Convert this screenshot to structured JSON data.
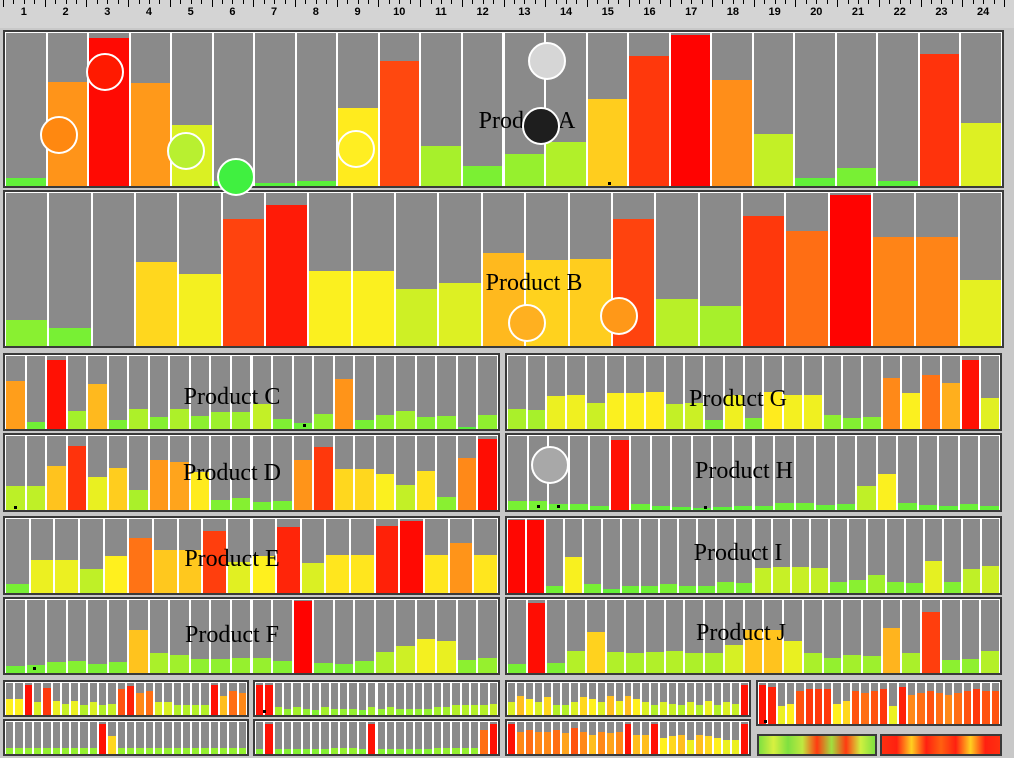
{
  "ruler": {
    "hours": [
      "1",
      "2",
      "3",
      "4",
      "5",
      "6",
      "7",
      "8",
      "9",
      "10",
      "11",
      "12",
      "13",
      "14",
      "15",
      "16",
      "17",
      "18",
      "19",
      "20",
      "21",
      "22",
      "23",
      "24"
    ]
  },
  "chart_data": [
    {
      "type": "bar",
      "id": "a",
      "title": "Product A",
      "ylim": [
        0,
        1
      ],
      "values": [
        0.05,
        0.68,
        0.97,
        0.67,
        0.4,
        0.03,
        0.02,
        0.03,
        0.51,
        0.82,
        0.26,
        0.13,
        0.21,
        0.29,
        0.57,
        0.85,
        0.99,
        0.69,
        0.34,
        0.05,
        0.12,
        0.03,
        0.86,
        0.41
      ]
    },
    {
      "type": "bar",
      "id": "b",
      "title": "Product B",
      "ylim": [
        0,
        1
      ],
      "values": [
        0.17,
        0.12,
        0.0,
        0.55,
        0.47,
        0.83,
        0.92,
        0.49,
        0.49,
        0.37,
        0.41,
        0.61,
        0.56,
        0.57,
        0.83,
        0.31,
        0.26,
        0.85,
        0.75,
        0.99,
        0.71,
        0.71,
        0.43
      ]
    },
    {
      "type": "bar",
      "id": "c",
      "title": "Product C",
      "ylim": [
        0,
        1
      ],
      "values": [
        0.66,
        0.1,
        0.95,
        0.25,
        0.61,
        0.13,
        0.28,
        0.16,
        0.28,
        0.18,
        0.23,
        0.23,
        0.34,
        0.14,
        0.08,
        0.2,
        0.68,
        0.12,
        0.19,
        0.24,
        0.16,
        0.18,
        0.03,
        0.19
      ]
    },
    {
      "type": "bar",
      "id": "d",
      "title": "Product D",
      "ylim": [
        0,
        1
      ],
      "values": [
        0.32,
        0.33,
        0.59,
        0.86,
        0.44,
        0.57,
        0.27,
        0.67,
        0.65,
        0.51,
        0.14,
        0.16,
        0.11,
        0.12,
        0.68,
        0.85,
        0.55,
        0.55,
        0.49,
        0.34,
        0.53,
        0.17,
        0.7,
        0.96
      ]
    },
    {
      "type": "bar",
      "id": "e",
      "title": "Product E",
      "ylim": [
        0,
        1
      ],
      "values": [
        0.12,
        0.45,
        0.45,
        0.33,
        0.5,
        0.74,
        0.58,
        0.58,
        0.84,
        0.42,
        0.5,
        0.89,
        0.4,
        0.52,
        0.52,
        0.9,
        0.97,
        0.52,
        0.68,
        0.52
      ]
    },
    {
      "type": "bar",
      "id": "f",
      "title": "Product F",
      "ylim": [
        0,
        1
      ],
      "values": [
        0.1,
        0.11,
        0.15,
        0.16,
        0.13,
        0.15,
        0.59,
        0.27,
        0.24,
        0.19,
        0.19,
        0.21,
        0.21,
        0.16,
        0.99,
        0.14,
        0.12,
        0.17,
        0.29,
        0.37,
        0.47,
        0.44,
        0.18,
        0.21
      ]
    },
    {
      "type": "bar",
      "id": "g",
      "title": "Product G",
      "ylim": [
        0,
        1
      ],
      "values": [
        0.27,
        0.26,
        0.45,
        0.46,
        0.36,
        0.49,
        0.49,
        0.51,
        0.34,
        0.36,
        0.13,
        0.46,
        0.15,
        0.51,
        0.47,
        0.46,
        0.19,
        0.15,
        0.17,
        0.7,
        0.49,
        0.74,
        0.63,
        0.95,
        0.42
      ]
    },
    {
      "type": "bar",
      "id": "h",
      "title": "Product H",
      "ylim": [
        0,
        1
      ],
      "values": [
        0.12,
        0.12,
        0.08,
        0.08,
        0.06,
        0.95,
        0.08,
        0.05,
        0.04,
        0.03,
        0.04,
        0.05,
        0.06,
        0.09,
        0.1,
        0.07,
        0.08,
        0.33,
        0.49,
        0.09,
        0.07,
        0.05,
        0.08,
        0.06
      ]
    },
    {
      "type": "bar",
      "id": "i",
      "title": "Product I",
      "ylim": [
        0,
        1
      ],
      "values": [
        0.98,
        0.98,
        0.1,
        0.48,
        0.12,
        0.05,
        0.09,
        0.09,
        0.12,
        0.1,
        0.1,
        0.15,
        0.13,
        0.34,
        0.35,
        0.35,
        0.34,
        0.15,
        0.17,
        0.24,
        0.15,
        0.13,
        0.43,
        0.15,
        0.33,
        0.37
      ]
    },
    {
      "type": "bar",
      "id": "j",
      "title": "Product J",
      "ylim": [
        0,
        1
      ],
      "values": [
        0.12,
        0.96,
        0.14,
        0.3,
        0.56,
        0.29,
        0.27,
        0.29,
        0.3,
        0.28,
        0.28,
        0.39,
        0.59,
        0.59,
        0.44,
        0.27,
        0.2,
        0.25,
        0.23,
        0.62,
        0.27,
        0.84,
        0.18,
        0.19,
        0.3
      ]
    },
    {
      "type": "bar",
      "id": "s1",
      "title": "",
      "ylim": [
        0,
        1
      ],
      "values": [
        0.5,
        0.5,
        0.95,
        0.4,
        0.85,
        0.45,
        0.35,
        0.45,
        0.3,
        0.4,
        0.3,
        0.35,
        0.8,
        0.9,
        0.7,
        0.75,
        0.4,
        0.4,
        0.3,
        0.3,
        0.3,
        0.3,
        0.95,
        0.6,
        0.75,
        0.7
      ]
    },
    {
      "type": "bar",
      "id": "s2",
      "title": "",
      "ylim": [
        0,
        1
      ],
      "values": [
        0.95,
        0.95,
        0.25,
        0.2,
        0.25,
        0.2,
        0.15,
        0.25,
        0.2,
        0.2,
        0.2,
        0.15,
        0.25,
        0.2,
        0.25,
        0.2,
        0.2,
        0.2,
        0.2,
        0.25,
        0.25,
        0.3,
        0.3,
        0.3,
        0.3,
        0.35
      ]
    },
    {
      "type": "bar",
      "id": "s3",
      "title": "",
      "ylim": [
        0,
        1
      ],
      "values": [
        0.4,
        0.6,
        0.5,
        0.4,
        0.55,
        0.3,
        0.3,
        0.4,
        0.55,
        0.5,
        0.4,
        0.6,
        0.45,
        0.6,
        0.5,
        0.4,
        0.3,
        0.4,
        0.35,
        0.3,
        0.4,
        0.3,
        0.45,
        0.3,
        0.4,
        0.35,
        0.95
      ]
    },
    {
      "type": "bar",
      "id": "s4",
      "title": "",
      "ylim": [
        0,
        1
      ],
      "values": [
        0.95,
        0.9,
        0.45,
        0.5,
        0.8,
        0.85,
        0.85,
        0.85,
        0.5,
        0.55,
        0.8,
        0.75,
        0.8,
        0.85,
        0.45,
        0.9,
        0.7,
        0.75,
        0.8,
        0.75,
        0.7,
        0.75,
        0.8,
        0.85,
        0.8,
        0.8
      ]
    },
    {
      "type": "bar",
      "id": "s5",
      "title": "",
      "ylim": [
        0,
        1
      ],
      "values": [
        0.2,
        0.2,
        0.2,
        0.2,
        0.2,
        0.2,
        0.2,
        0.2,
        0.2,
        0.2,
        0.95,
        0.55,
        0.2,
        0.2,
        0.2,
        0.2,
        0.2,
        0.2,
        0.2,
        0.2,
        0.2,
        0.2,
        0.2,
        0.2,
        0.2,
        0.2
      ]
    },
    {
      "type": "bar",
      "id": "s6",
      "title": "",
      "ylim": [
        0,
        1
      ],
      "values": [
        0.15,
        0.95,
        0.15,
        0.15,
        0.15,
        0.15,
        0.15,
        0.15,
        0.2,
        0.2,
        0.2,
        0.15,
        0.95,
        0.15,
        0.15,
        0.15,
        0.15,
        0.15,
        0.15,
        0.2,
        0.2,
        0.2,
        0.2,
        0.2,
        0.75,
        0.95
      ]
    },
    {
      "type": "bar",
      "id": "s7",
      "title": "",
      "ylim": [
        0,
        1
      ],
      "values": [
        0.95,
        0.7,
        0.75,
        0.7,
        0.7,
        0.75,
        0.65,
        0.8,
        0.7,
        0.6,
        0.7,
        0.65,
        0.7,
        0.95,
        0.6,
        0.6,
        0.95,
        0.5,
        0.55,
        0.6,
        0.45,
        0.6,
        0.55,
        0.5,
        0.45,
        0.45,
        0.95
      ]
    }
  ]
}
